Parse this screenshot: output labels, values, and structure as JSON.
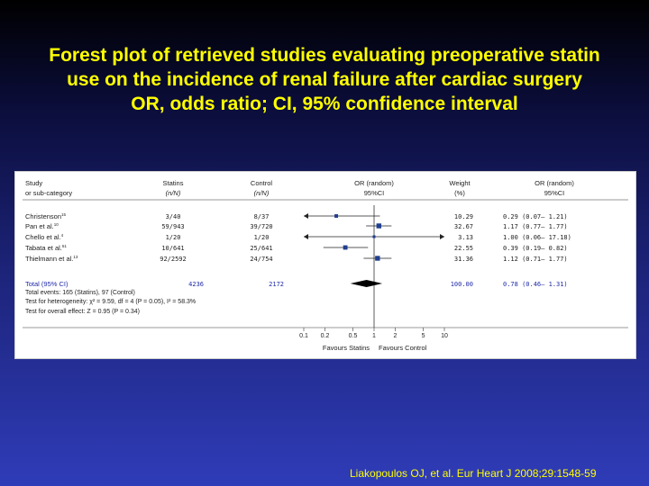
{
  "slide": {
    "title_lines": [
      "Forest plot of retrieved studies evaluating preoperative statin",
      "use on the incidence of renal failure after cardiac surgery",
      "OR, odds ratio; CI, 95% confidence interval"
    ],
    "citation": "Liakopoulos OJ, et al. Eur Heart J 2008;29:1548-59",
    "colors": {
      "background": "#1c2378",
      "title": "#ffff00",
      "marker": "#1f3f8f",
      "blue_text": "#1f2aa8"
    }
  },
  "chart_data": {
    "type": "forest",
    "header": {
      "study": [
        "Study",
        "or sub-category"
      ],
      "statins": [
        "Statins",
        "(n/N)"
      ],
      "control": [
        "Control",
        "(n/N)"
      ],
      "or_plot": [
        "OR (random)",
        "95%CI"
      ],
      "weight": [
        "Weight",
        "(%)"
      ],
      "or_text": [
        "OR (random)",
        "95%CI"
      ]
    },
    "studies": [
      {
        "study": "Christenson",
        "ref": "15",
        "statins": "3/40",
        "control": "8/37",
        "weight": "10.29",
        "or_text": "0.29 (0.07– 1.21)",
        "or": 0.29,
        "lo": 0.07,
        "hi": 1.21
      },
      {
        "study": "Pan et al.",
        "ref": "10",
        "statins": "59/943",
        "control": "39/720",
        "weight": "32.67",
        "or_text": "1.17 (0.77– 1.77)",
        "or": 1.17,
        "lo": 0.77,
        "hi": 1.77
      },
      {
        "study": "Chello et al.",
        "ref": "4",
        "statins": "1/20",
        "control": "1/20",
        "weight": "3.13",
        "or_text": "1.00 (0.06– 17.18)",
        "or": 1.0,
        "lo": 0.06,
        "hi": 17.18
      },
      {
        "study": "Tabata et al.",
        "ref": "51",
        "statins": "10/641",
        "control": "25/641",
        "weight": "22.55",
        "or_text": "0.39 (0.19– 0.82)",
        "or": 0.39,
        "lo": 0.19,
        "hi": 0.82
      },
      {
        "study": "Thielmann et al.",
        "ref": "13",
        "statins": "92/2592",
        "control": "24/754",
        "weight": "31.36",
        "or_text": "1.12 (0.71– 1.77)",
        "or": 1.12,
        "lo": 0.71,
        "hi": 1.77
      }
    ],
    "total": {
      "label": "Total (95% CI)",
      "statins": "4236",
      "control": "2172",
      "weight": "100.00",
      "or_text": "0.78 (0.46– 1.31)",
      "or": 0.78,
      "lo": 0.46,
      "hi": 1.31
    },
    "footnotes": [
      "Total events: 165 (Statins), 97 (Control)",
      "Test for heterogeneity: χ² = 9.59, df = 4 (P = 0.05), I² = 58.3%",
      "Test for overall effect: Z = 0.95 (P = 0.34)"
    ],
    "x_axis": {
      "scale": "log",
      "ticks": [
        0.1,
        0.2,
        0.5,
        1,
        2,
        5,
        10
      ],
      "tick_labels": [
        "0.1",
        "0.2",
        "0.5",
        "1",
        "2",
        "5",
        "10"
      ],
      "range": [
        0.1,
        10
      ],
      "left_label": "Favours Statins",
      "right_label": "Favours Control"
    }
  }
}
